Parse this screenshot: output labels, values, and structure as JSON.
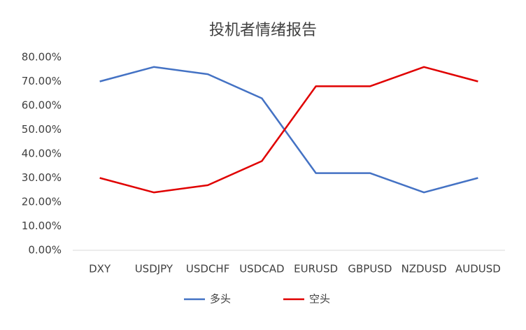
{
  "chart_data": {
    "type": "line",
    "title": "投机者情绪报告",
    "categories": [
      "DXY",
      "USDJPY",
      "USDCHF",
      "USDCAD",
      "EURUSD",
      "GBPUSD",
      "NZDUSD",
      "AUDUSD"
    ],
    "series": [
      {
        "name": "多头",
        "color": "#4472c4",
        "values": [
          70,
          76,
          73,
          63,
          32,
          32,
          24,
          30
        ]
      },
      {
        "name": "空头",
        "color": "#e00000",
        "values": [
          30,
          24,
          27,
          37,
          68,
          68,
          76,
          70
        ]
      }
    ],
    "ylim": [
      0,
      80
    ],
    "yticks": [
      {
        "value": 0,
        "label": "0.00%"
      },
      {
        "value": 10,
        "label": "10.00%"
      },
      {
        "value": 20,
        "label": "20.00%"
      },
      {
        "value": 30,
        "label": "30.00%"
      },
      {
        "value": 40,
        "label": "40.00%"
      },
      {
        "value": 50,
        "label": "50.00%"
      },
      {
        "value": 60,
        "label": "60.00%"
      },
      {
        "value": 70,
        "label": "70.00%"
      },
      {
        "value": 80,
        "label": "80.00%"
      }
    ],
    "grid": false,
    "legend": "bottom"
  }
}
